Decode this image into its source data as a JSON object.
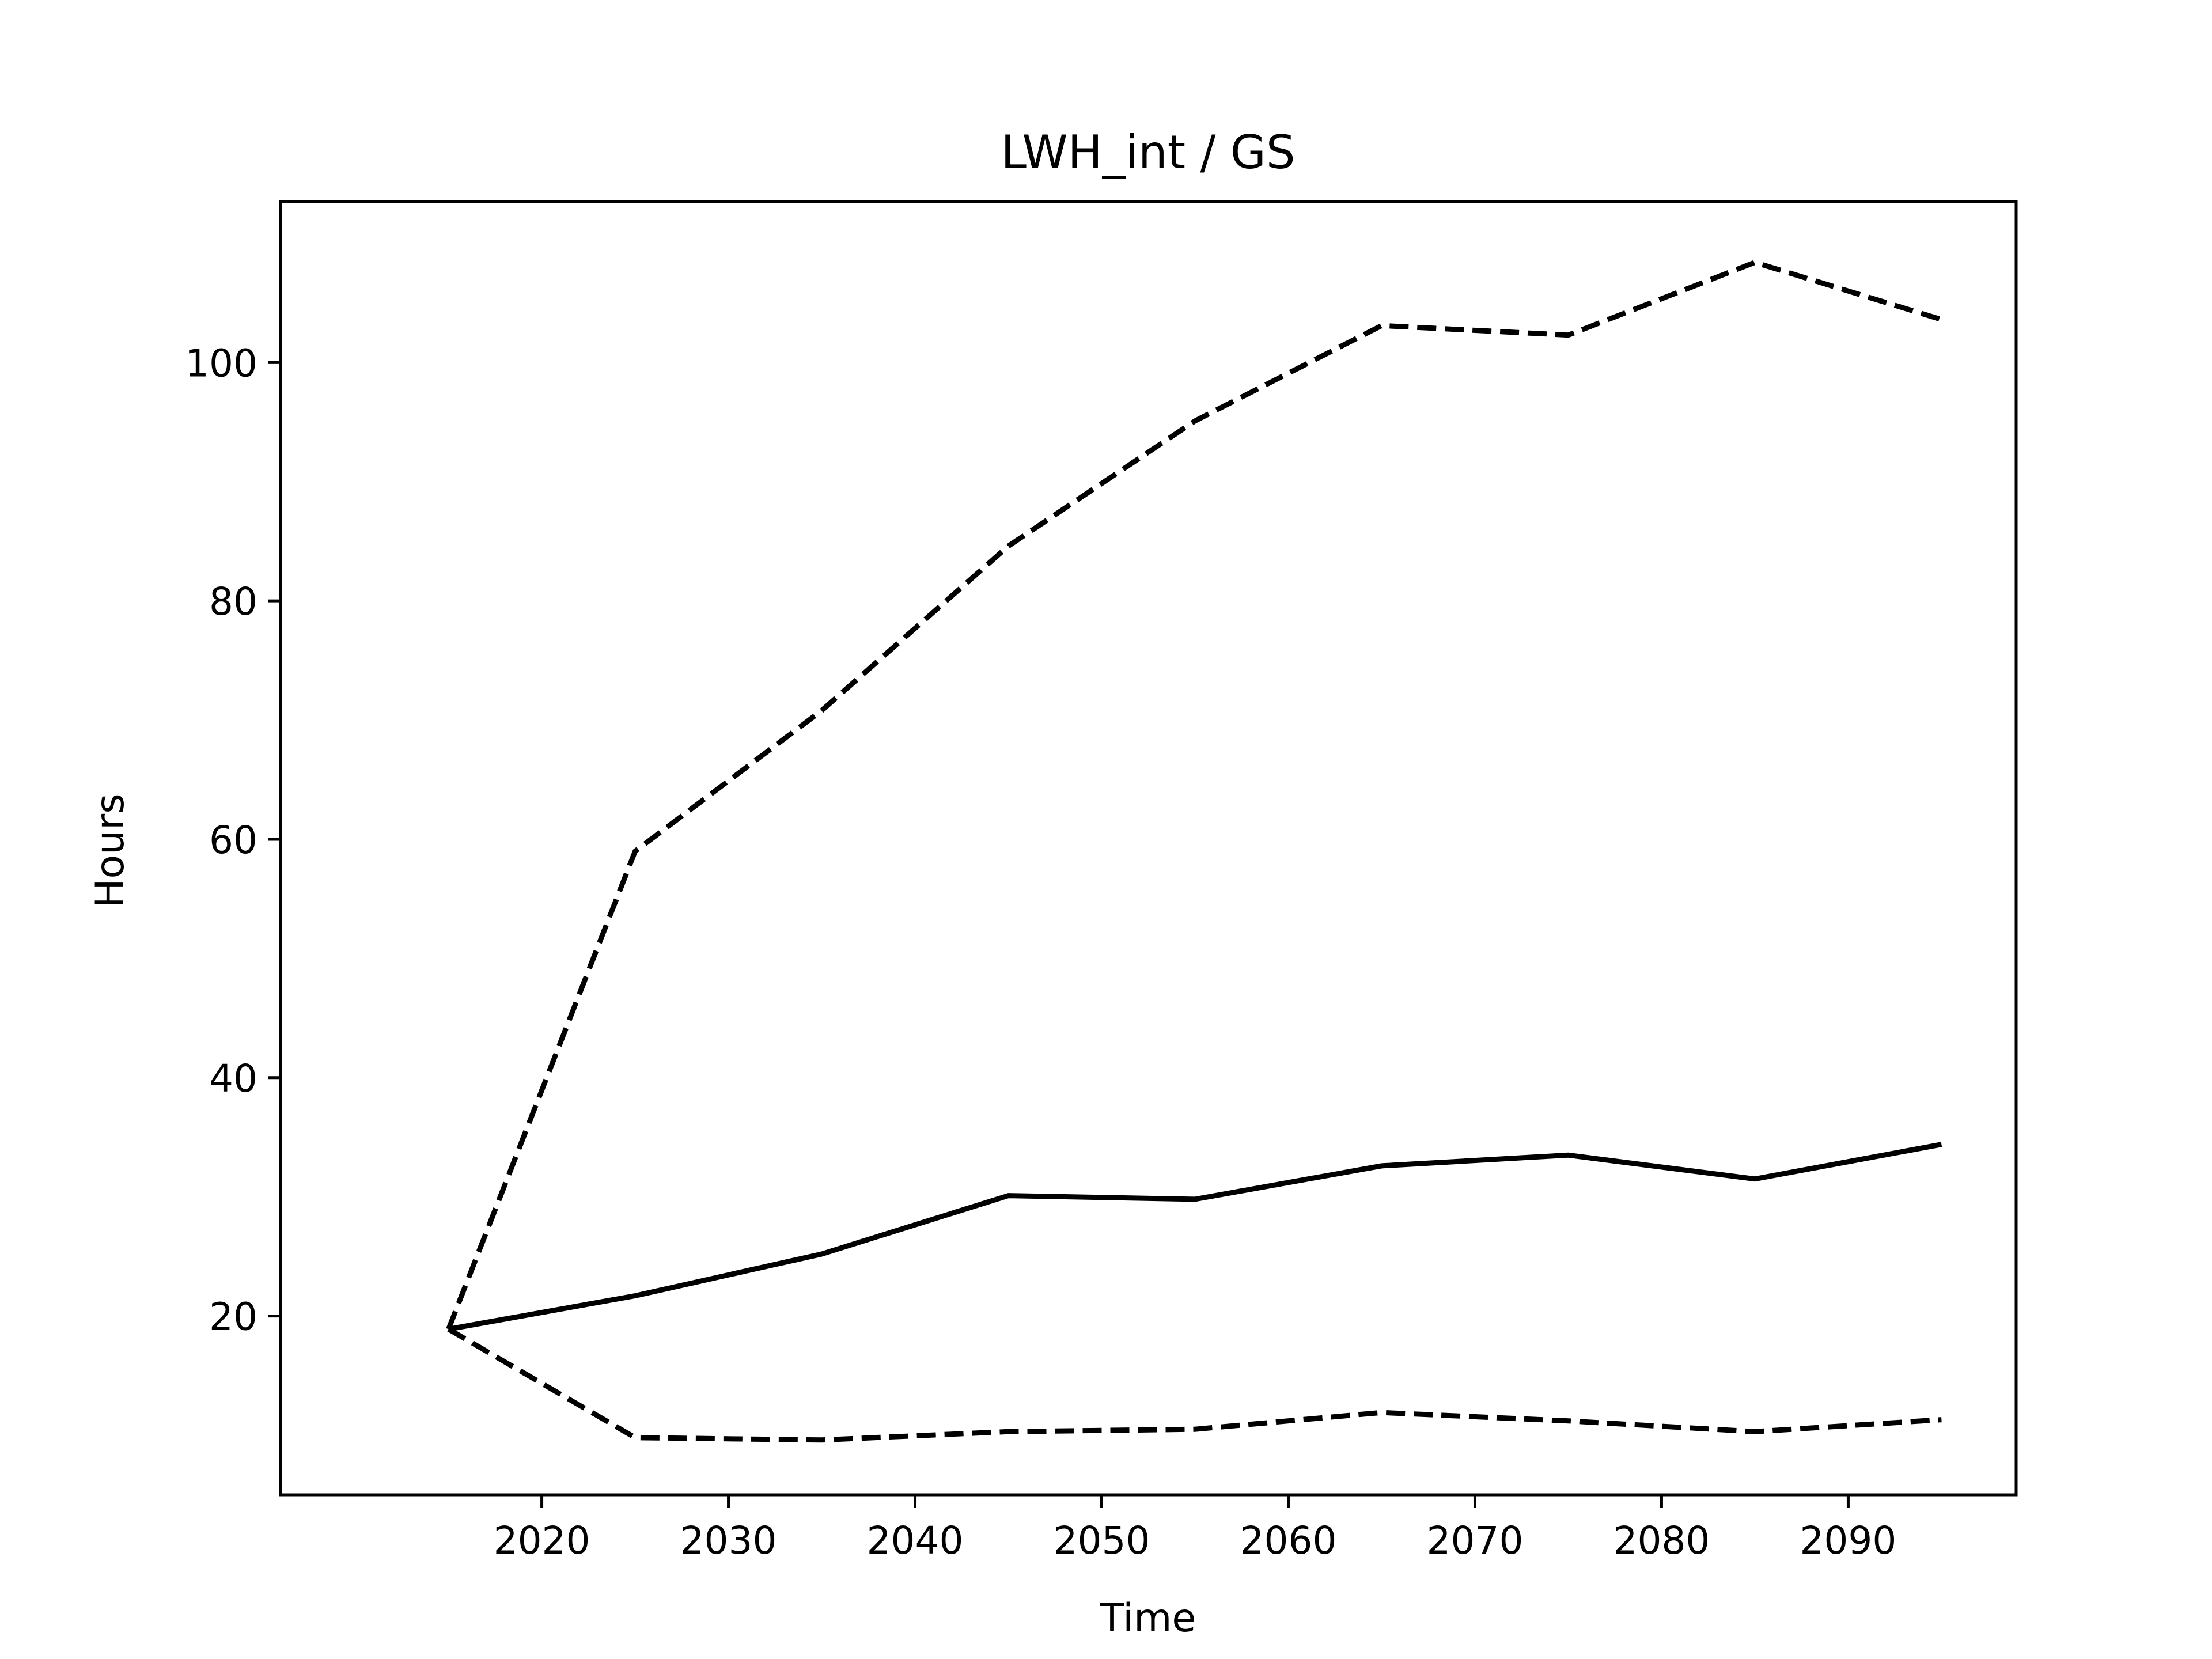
{
  "chart_data": {
    "type": "line",
    "title": "LWH_int / GS",
    "xlabel": "Time",
    "ylabel": "Hours",
    "x": [
      2015,
      2025,
      2035,
      2045,
      2055,
      2065,
      2075,
      2085,
      2095
    ],
    "xlim": [
      2006,
      2099
    ],
    "ylim": [
      5,
      113.5
    ],
    "xticks": [
      2020,
      2030,
      2040,
      2050,
      2060,
      2070,
      2080,
      2090
    ],
    "yticks": [
      20,
      40,
      60,
      80,
      100
    ],
    "grid": false,
    "colors": {
      "line": "#000000",
      "axes": "#000000",
      "background": "#ffffff"
    },
    "series": [
      {
        "style": "solid",
        "values": [
          18.9,
          21.7,
          25.2,
          30.1,
          29.8,
          32.6,
          33.5,
          31.5,
          34.4
        ]
      },
      {
        "style": "dashed",
        "values": [
          18.9,
          59.0,
          70.8,
          84.6,
          95.1,
          103.1,
          102.3,
          108.4,
          103.6
        ]
      },
      {
        "style": "dashed",
        "values": [
          18.9,
          9.8,
          9.6,
          10.3,
          10.5,
          11.9,
          11.2,
          10.3,
          11.3
        ]
      }
    ]
  }
}
